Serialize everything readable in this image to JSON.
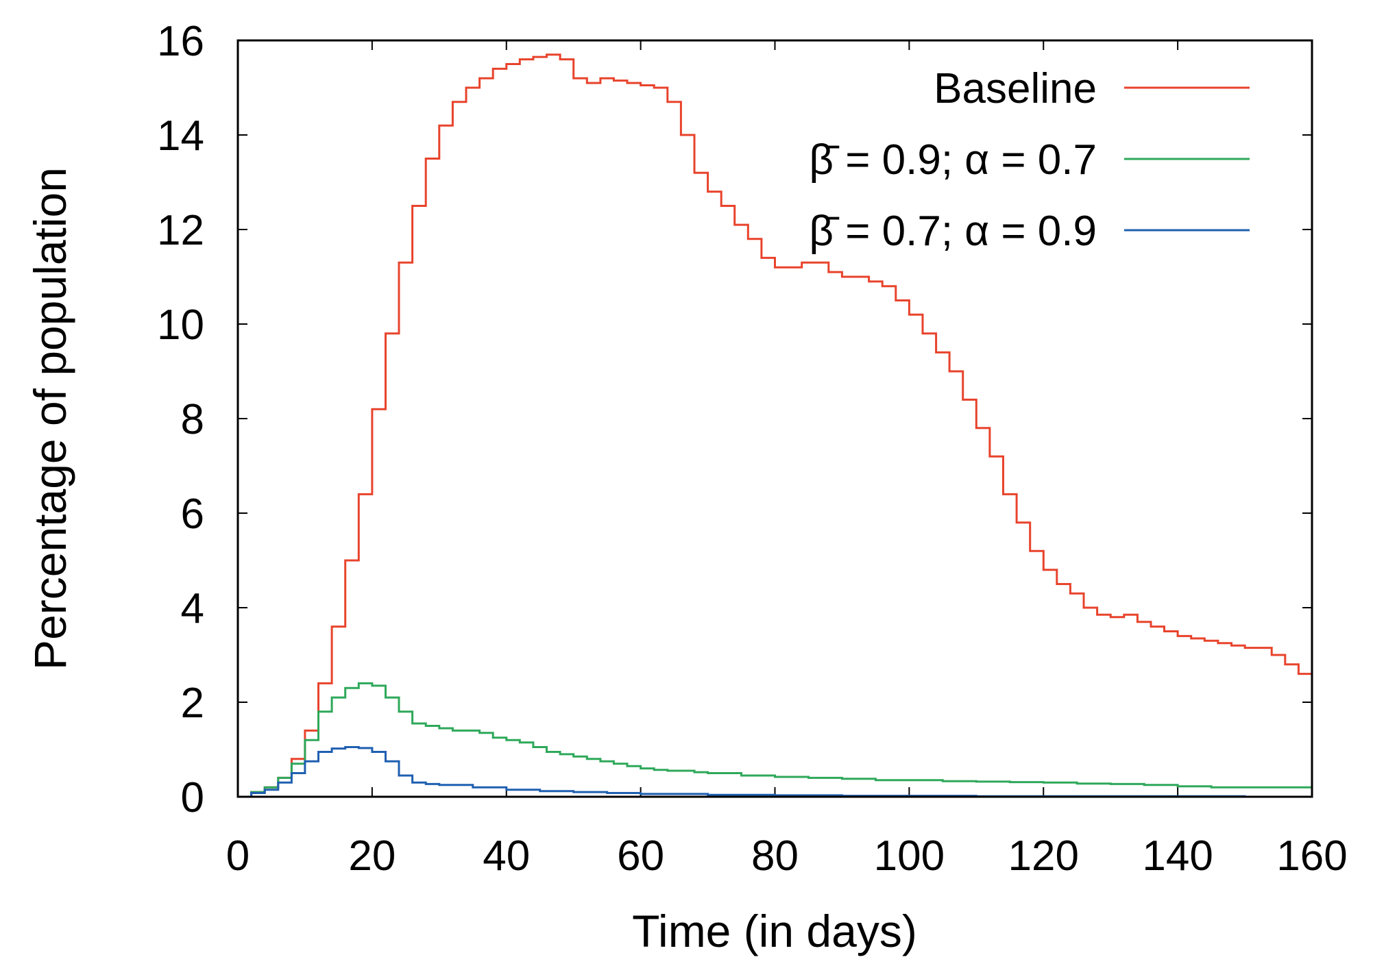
{
  "chart_data": {
    "type": "line",
    "title": "",
    "xlabel": "Time (in days)",
    "ylabel": "Percentage of population",
    "xlim": [
      0,
      160
    ],
    "ylim": [
      0,
      16
    ],
    "xticks": [
      "0",
      "20",
      "40",
      "60",
      "80",
      "100",
      "120",
      "140",
      "160"
    ],
    "yticks": [
      "0",
      "2",
      "4",
      "6",
      "8",
      "10",
      "12",
      "14",
      "16"
    ],
    "grid": false,
    "legend_position": "top-right",
    "series": [
      {
        "name": "Baseline",
        "color": "#e8432c",
        "x": [
          0,
          2,
          4,
          6,
          8,
          10,
          12,
          14,
          16,
          18,
          20,
          22,
          24,
          26,
          28,
          30,
          32,
          34,
          36,
          38,
          40,
          42,
          44,
          46,
          48,
          50,
          52,
          54,
          56,
          58,
          60,
          62,
          64,
          66,
          68,
          70,
          72,
          74,
          76,
          78,
          80,
          82,
          84,
          86,
          88,
          90,
          92,
          94,
          96,
          98,
          100,
          102,
          104,
          106,
          108,
          110,
          112,
          114,
          116,
          118,
          120,
          122,
          124,
          126,
          128,
          130,
          132,
          134,
          136,
          138,
          140,
          142,
          144,
          146,
          148,
          150,
          152,
          154,
          156,
          158,
          160
        ],
        "values": [
          0.0,
          0.1,
          0.2,
          0.4,
          0.8,
          1.4,
          2.4,
          3.6,
          5.0,
          6.4,
          8.2,
          9.8,
          11.3,
          12.5,
          13.5,
          14.2,
          14.7,
          15.0,
          15.2,
          15.4,
          15.5,
          15.6,
          15.65,
          15.7,
          15.6,
          15.2,
          15.1,
          15.2,
          15.15,
          15.1,
          15.05,
          15.0,
          14.7,
          14.0,
          13.2,
          12.8,
          12.5,
          12.1,
          11.8,
          11.4,
          11.2,
          11.2,
          11.3,
          11.3,
          11.1,
          11.0,
          11.0,
          10.9,
          10.8,
          10.5,
          10.2,
          9.8,
          9.4,
          9.0,
          8.4,
          7.8,
          7.2,
          6.4,
          5.8,
          5.2,
          4.8,
          4.5,
          4.3,
          4.0,
          3.85,
          3.8,
          3.85,
          3.7,
          3.6,
          3.5,
          3.4,
          3.35,
          3.3,
          3.25,
          3.2,
          3.15,
          3.15,
          3.0,
          2.8,
          2.6,
          2.5
        ]
      },
      {
        "name": "β̄ = 0.9; α = 0.7",
        "color": "#2ea85a",
        "x": [
          0,
          2,
          4,
          6,
          8,
          10,
          12,
          14,
          16,
          18,
          20,
          22,
          24,
          26,
          28,
          30,
          32,
          34,
          36,
          38,
          40,
          42,
          44,
          46,
          48,
          50,
          52,
          54,
          56,
          58,
          60,
          62,
          64,
          66,
          68,
          70,
          75,
          80,
          85,
          90,
          95,
          100,
          105,
          110,
          115,
          120,
          125,
          130,
          135,
          140,
          145,
          150,
          155,
          160
        ],
        "values": [
          0.0,
          0.1,
          0.2,
          0.4,
          0.7,
          1.2,
          1.8,
          2.1,
          2.3,
          2.4,
          2.35,
          2.1,
          1.8,
          1.55,
          1.5,
          1.45,
          1.4,
          1.4,
          1.35,
          1.25,
          1.2,
          1.15,
          1.05,
          0.95,
          0.9,
          0.85,
          0.8,
          0.75,
          0.7,
          0.65,
          0.6,
          0.57,
          0.55,
          0.55,
          0.52,
          0.5,
          0.45,
          0.42,
          0.4,
          0.38,
          0.35,
          0.35,
          0.33,
          0.32,
          0.31,
          0.3,
          0.28,
          0.27,
          0.25,
          0.22,
          0.2,
          0.2,
          0.2,
          0.18
        ]
      },
      {
        "name": "β̄ = 0.7; α = 0.9",
        "color": "#1f5fb0",
        "x": [
          0,
          2,
          4,
          6,
          8,
          10,
          12,
          14,
          16,
          18,
          20,
          22,
          24,
          26,
          28,
          30,
          35,
          40,
          45,
          50,
          55,
          60,
          70,
          80,
          90,
          100,
          110,
          120,
          130,
          140,
          150,
          160
        ],
        "values": [
          0.0,
          0.08,
          0.15,
          0.3,
          0.5,
          0.75,
          0.95,
          1.02,
          1.05,
          1.03,
          0.95,
          0.75,
          0.45,
          0.3,
          0.27,
          0.25,
          0.2,
          0.15,
          0.12,
          0.1,
          0.08,
          0.06,
          0.04,
          0.03,
          0.02,
          0.02,
          0.01,
          0.01,
          0.01,
          0.01,
          0.0,
          0.0
        ]
      }
    ]
  }
}
